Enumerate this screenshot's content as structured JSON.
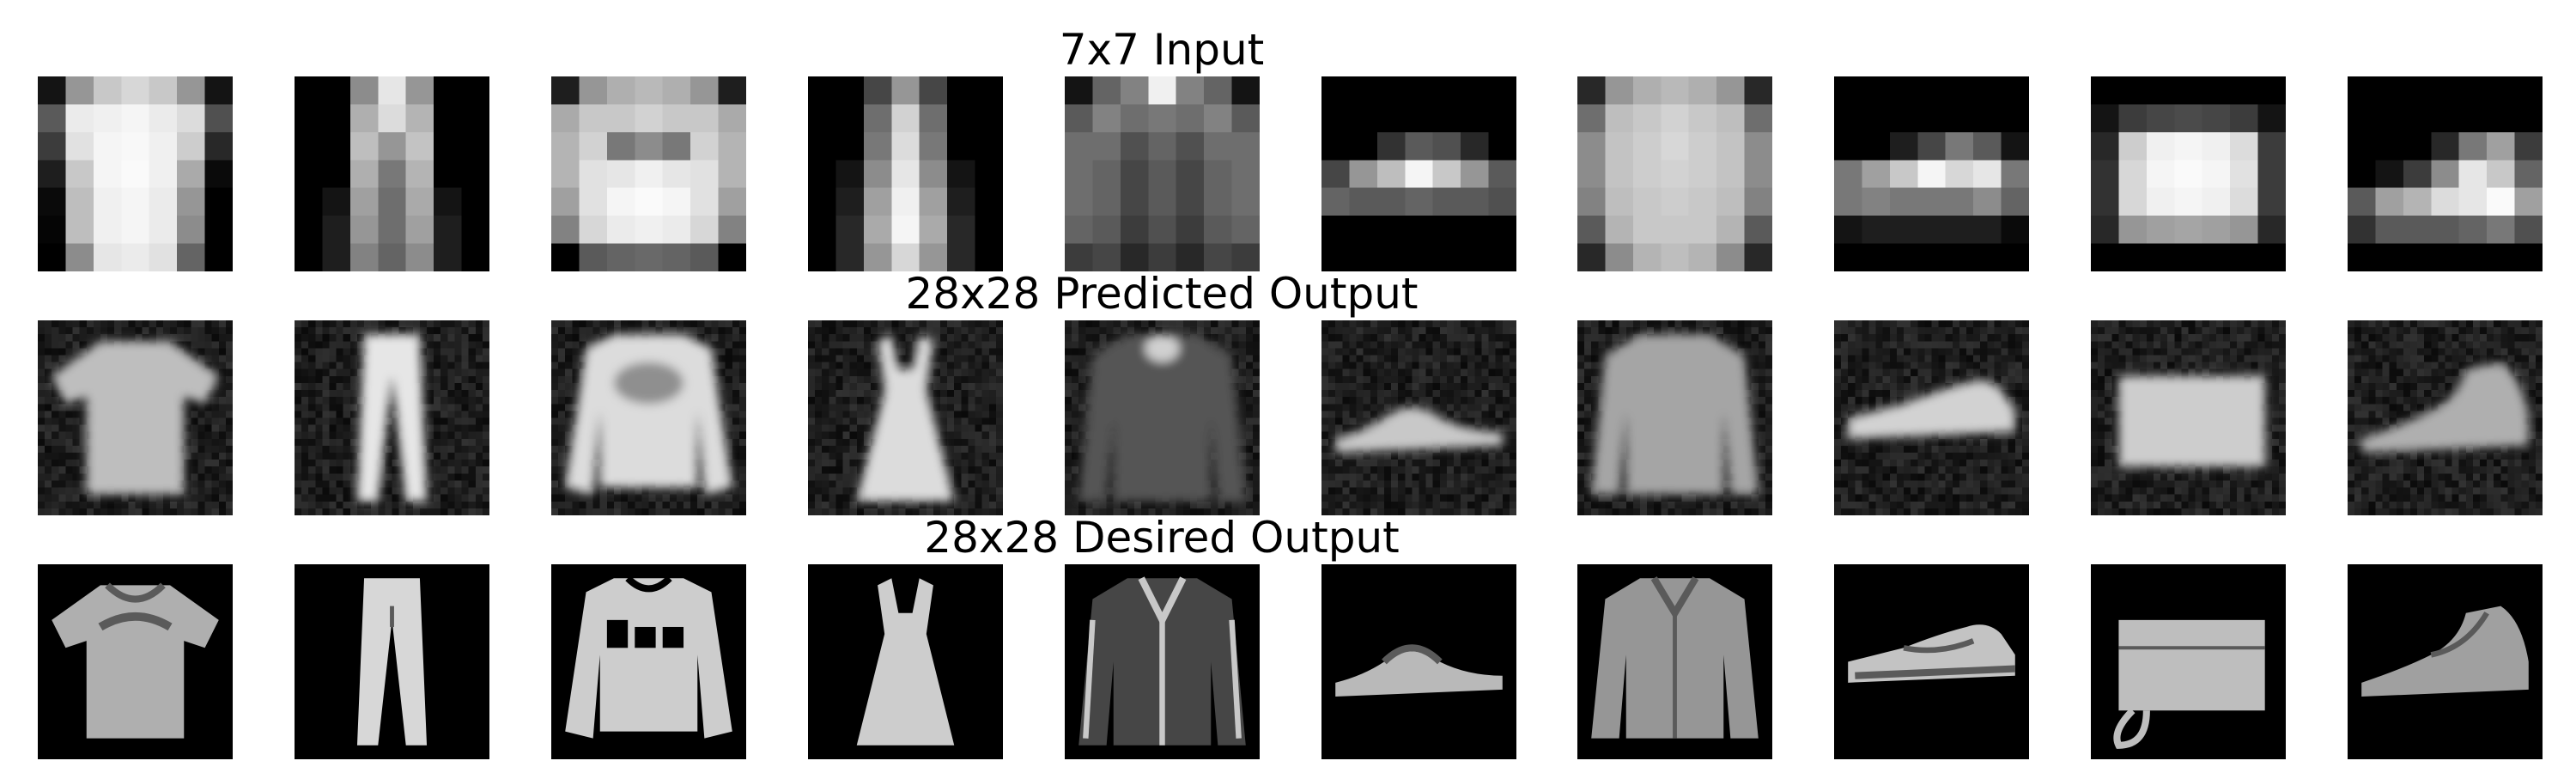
{
  "figure": {
    "columns": 10,
    "rows": [
      {
        "title": "7x7 Input",
        "kind": "pixelated",
        "items": [
          "tshirt-top",
          "trouser",
          "pullover",
          "dress",
          "coat",
          "sandal",
          "shirt",
          "sneaker",
          "bag",
          "ankle-boot"
        ]
      },
      {
        "title": "28x28 Predicted Output",
        "kind": "blurry",
        "items": [
          "tshirt-top",
          "trouser",
          "pullover",
          "dress",
          "coat",
          "sandal",
          "shirt",
          "sneaker",
          "bag",
          "ankle-boot"
        ]
      },
      {
        "title": "28x28 Desired Output",
        "kind": "sharp",
        "items": [
          "tshirt-top",
          "trouser",
          "pullover",
          "dress",
          "coat",
          "sandal",
          "shirt",
          "sneaker",
          "bag",
          "ankle-boot"
        ]
      }
    ],
    "colors": {
      "background": "#ffffff",
      "tile_background": "#000000",
      "text": "#000000"
    }
  }
}
